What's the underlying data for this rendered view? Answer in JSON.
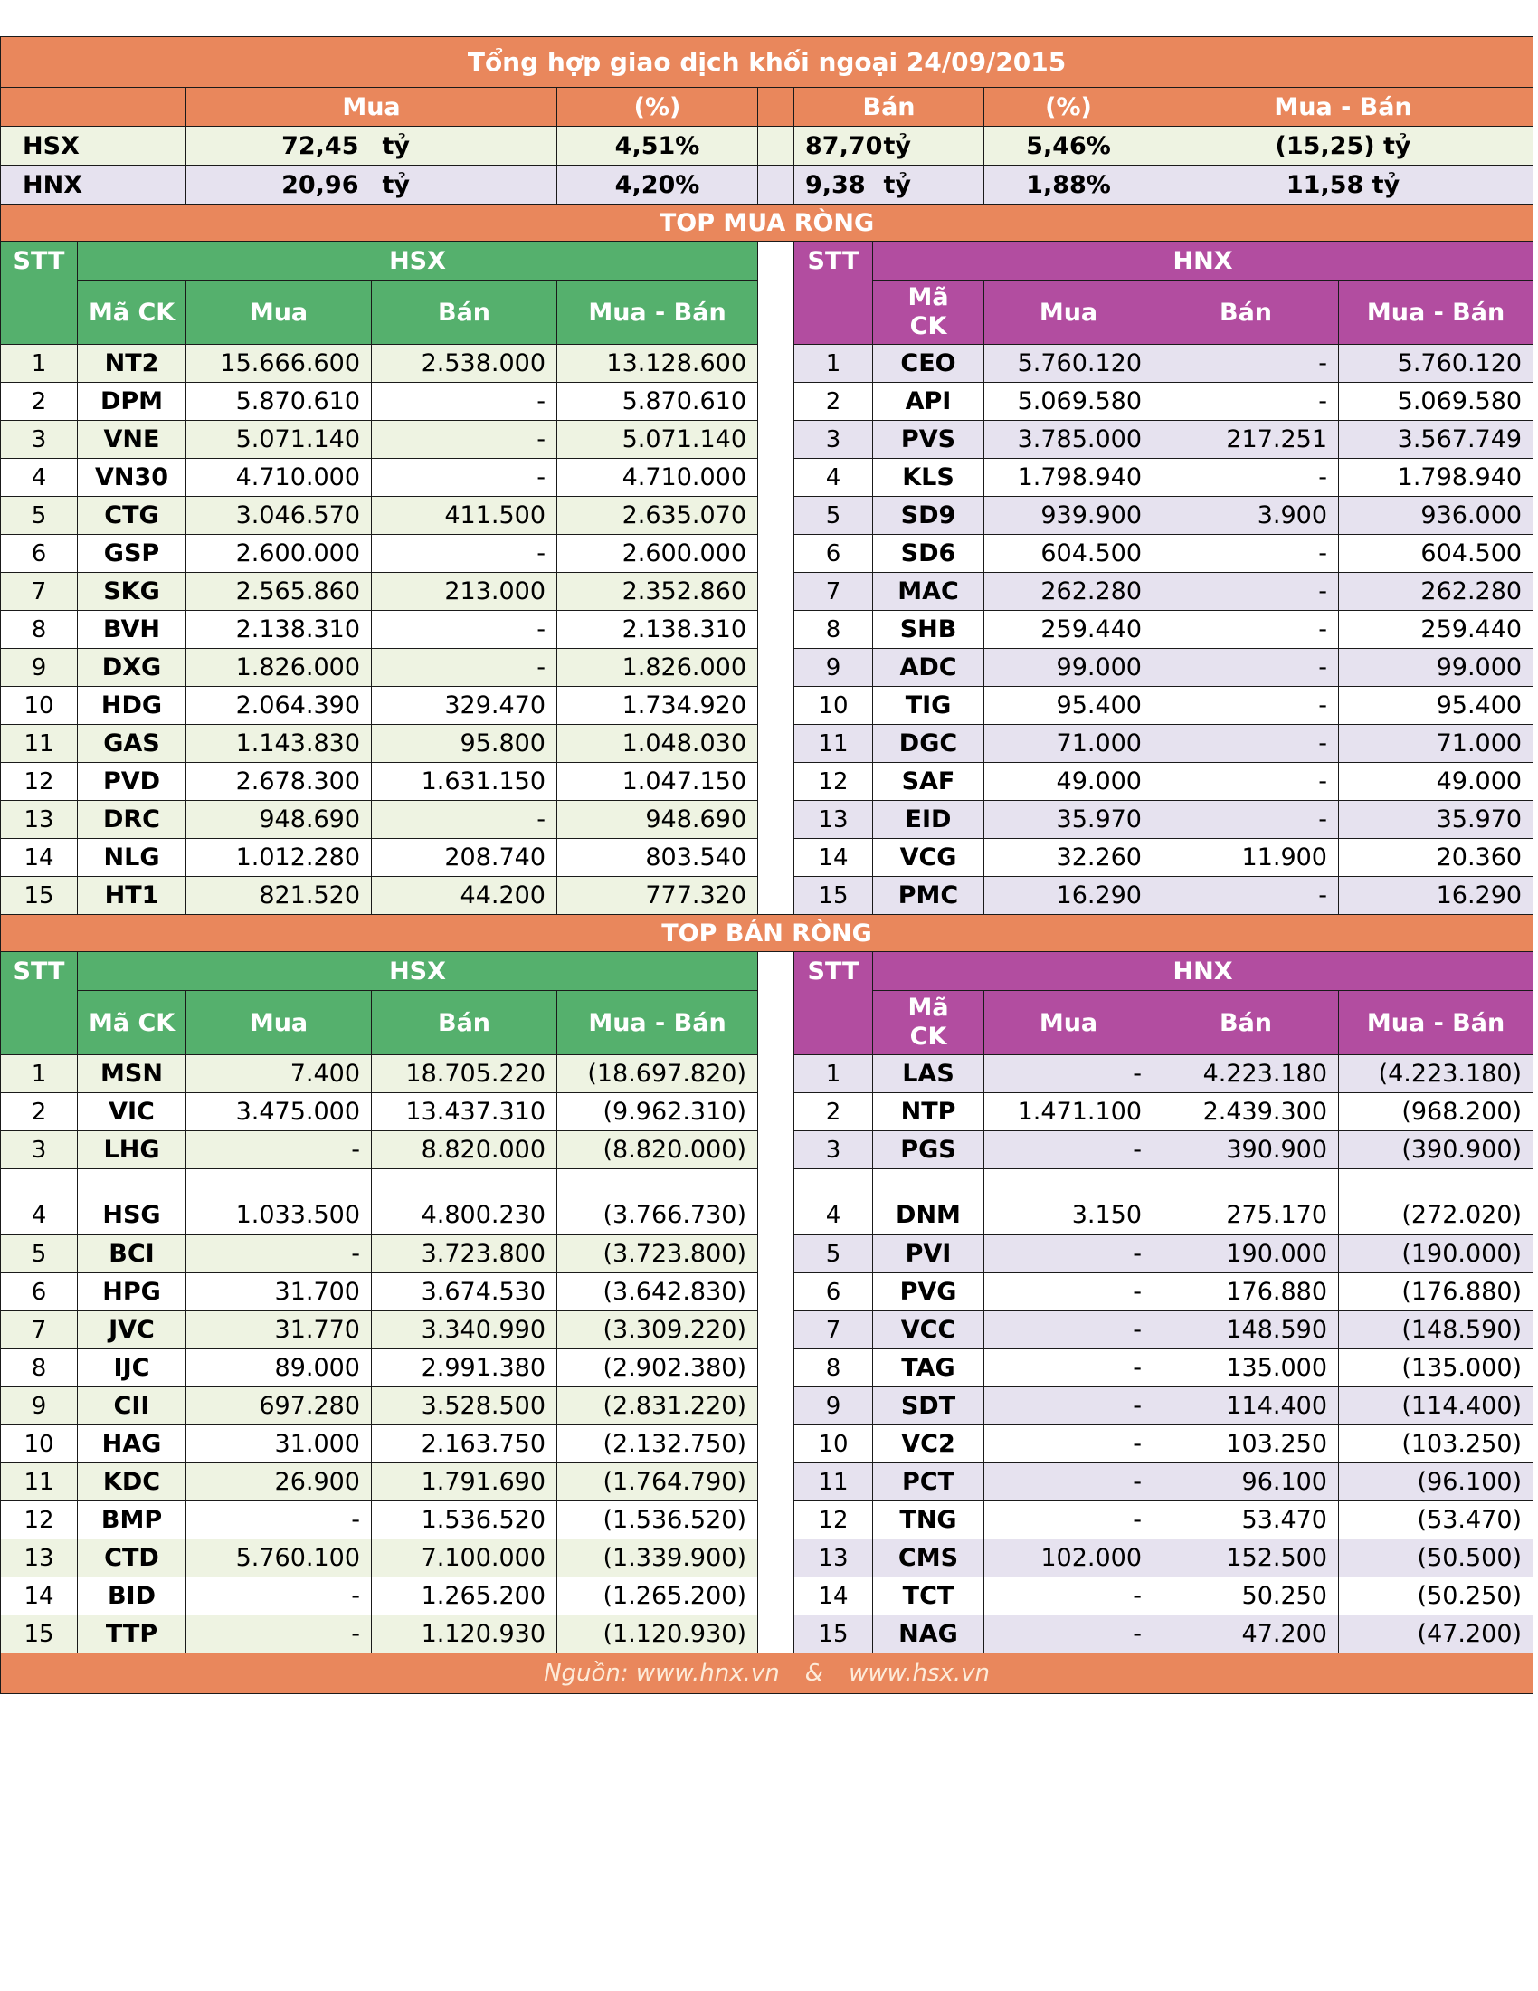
{
  "title": "Tổng hợp giao dịch khối ngoại 24/09/2015",
  "summary": {
    "headers": {
      "buy": "Mua",
      "buy_pct": "(%)",
      "sell": "Bán",
      "sell_pct": "(%)",
      "net": "Mua - Bán"
    },
    "unit": "tỷ",
    "rows": [
      {
        "exchange": "HSX",
        "buy": "72,45",
        "buy_pct": "4,51%",
        "sell": "87,70",
        "sell_pct": "5,46%",
        "net": "(15,25) tỷ"
      },
      {
        "exchange": "HNX",
        "buy": "20,96",
        "buy_pct": "4,20%",
        "sell": "9,38",
        "sell_pct": "1,88%",
        "net": "11,58 tỷ"
      }
    ]
  },
  "labels": {
    "stt": "STT",
    "hsx": "HSX",
    "hnx": "HNX",
    "code_hsx": "Mã CK",
    "code_hnx_1": "Mã",
    "code_hnx_2": "CK",
    "buy": "Mua",
    "sell": "Bán",
    "net": "Mua - Bán"
  },
  "top_buy": {
    "title": "TOP MUA RÒNG",
    "hsx": [
      [
        "1",
        "NT2",
        "15.666.600",
        "2.538.000",
        "13.128.600"
      ],
      [
        "2",
        "DPM",
        "5.870.610",
        "-",
        "5.870.610"
      ],
      [
        "3",
        "VNE",
        "5.071.140",
        "-",
        "5.071.140"
      ],
      [
        "4",
        "VN30",
        "4.710.000",
        "-",
        "4.710.000"
      ],
      [
        "5",
        "CTG",
        "3.046.570",
        "411.500",
        "2.635.070"
      ],
      [
        "6",
        "GSP",
        "2.600.000",
        "-",
        "2.600.000"
      ],
      [
        "7",
        "SKG",
        "2.565.860",
        "213.000",
        "2.352.860"
      ],
      [
        "8",
        "BVH",
        "2.138.310",
        "-",
        "2.138.310"
      ],
      [
        "9",
        "DXG",
        "1.826.000",
        "-",
        "1.826.000"
      ],
      [
        "10",
        "HDG",
        "2.064.390",
        "329.470",
        "1.734.920"
      ],
      [
        "11",
        "GAS",
        "1.143.830",
        "95.800",
        "1.048.030"
      ],
      [
        "12",
        "PVD",
        "2.678.300",
        "1.631.150",
        "1.047.150"
      ],
      [
        "13",
        "DRC",
        "948.690",
        "-",
        "948.690"
      ],
      [
        "14",
        "NLG",
        "1.012.280",
        "208.740",
        "803.540"
      ],
      [
        "15",
        "HT1",
        "821.520",
        "44.200",
        "777.320"
      ]
    ],
    "hnx": [
      [
        "1",
        "CEO",
        "5.760.120",
        "-",
        "5.760.120"
      ],
      [
        "2",
        "API",
        "5.069.580",
        "-",
        "5.069.580"
      ],
      [
        "3",
        "PVS",
        "3.785.000",
        "217.251",
        "3.567.749"
      ],
      [
        "4",
        "KLS",
        "1.798.940",
        "-",
        "1.798.940"
      ],
      [
        "5",
        "SD9",
        "939.900",
        "3.900",
        "936.000"
      ],
      [
        "6",
        "SD6",
        "604.500",
        "-",
        "604.500"
      ],
      [
        "7",
        "MAC",
        "262.280",
        "-",
        "262.280"
      ],
      [
        "8",
        "SHB",
        "259.440",
        "-",
        "259.440"
      ],
      [
        "9",
        "ADC",
        "99.000",
        "-",
        "99.000"
      ],
      [
        "10",
        "TIG",
        "95.400",
        "-",
        "95.400"
      ],
      [
        "11",
        "DGC",
        "71.000",
        "-",
        "71.000"
      ],
      [
        "12",
        "SAF",
        "49.000",
        "-",
        "49.000"
      ],
      [
        "13",
        "EID",
        "35.970",
        "-",
        "35.970"
      ],
      [
        "14",
        "VCG",
        "32.260",
        "11.900",
        "20.360"
      ],
      [
        "15",
        "PMC",
        "16.290",
        "-",
        "16.290"
      ]
    ]
  },
  "top_sell": {
    "title": "TOP BÁN RÒNG",
    "hsx": [
      [
        "1",
        "MSN",
        "7.400",
        "18.705.220",
        "(18.697.820)"
      ],
      [
        "2",
        "VIC",
        "3.475.000",
        "13.437.310",
        "(9.962.310)"
      ],
      [
        "3",
        "LHG",
        "-",
        "8.820.000",
        "(8.820.000)"
      ],
      [
        "4",
        "HSG",
        "1.033.500",
        "4.800.230",
        "(3.766.730)"
      ],
      [
        "5",
        "BCI",
        "-",
        "3.723.800",
        "(3.723.800)"
      ],
      [
        "6",
        "HPG",
        "31.700",
        "3.674.530",
        "(3.642.830)"
      ],
      [
        "7",
        "JVC",
        "31.770",
        "3.340.990",
        "(3.309.220)"
      ],
      [
        "8",
        "IJC",
        "89.000",
        "2.991.380",
        "(2.902.380)"
      ],
      [
        "9",
        "CII",
        "697.280",
        "3.528.500",
        "(2.831.220)"
      ],
      [
        "10",
        "HAG",
        "31.000",
        "2.163.750",
        "(2.132.750)"
      ],
      [
        "11",
        "KDC",
        "26.900",
        "1.791.690",
        "(1.764.790)"
      ],
      [
        "12",
        "BMP",
        "-",
        "1.536.520",
        "(1.536.520)"
      ],
      [
        "13",
        "CTD",
        "5.760.100",
        "7.100.000",
        "(1.339.900)"
      ],
      [
        "14",
        "BID",
        "-",
        "1.265.200",
        "(1.265.200)"
      ],
      [
        "15",
        "TTP",
        "-",
        "1.120.930",
        "(1.120.930)"
      ]
    ],
    "hnx": [
      [
        "1",
        "LAS",
        "-",
        "4.223.180",
        "(4.223.180)"
      ],
      [
        "2",
        "NTP",
        "1.471.100",
        "2.439.300",
        "(968.200)"
      ],
      [
        "3",
        "PGS",
        "-",
        "390.900",
        "(390.900)"
      ],
      [
        "4",
        "DNM",
        "3.150",
        "275.170",
        "(272.020)"
      ],
      [
        "5",
        "PVI",
        "-",
        "190.000",
        "(190.000)"
      ],
      [
        "6",
        "PVG",
        "-",
        "176.880",
        "(176.880)"
      ],
      [
        "7",
        "VCC",
        "-",
        "148.590",
        "(148.590)"
      ],
      [
        "8",
        "TAG",
        "-",
        "135.000",
        "(135.000)"
      ],
      [
        "9",
        "SDT",
        "-",
        "114.400",
        "(114.400)"
      ],
      [
        "10",
        "VC2",
        "-",
        "103.250",
        "(103.250)"
      ],
      [
        "11",
        "PCT",
        "-",
        "96.100",
        "(96.100)"
      ],
      [
        "12",
        "TNG",
        "-",
        "53.470",
        "(53.470)"
      ],
      [
        "13",
        "CMS",
        "102.000",
        "152.500",
        "(50.500)"
      ],
      [
        "14",
        "TCT",
        "-",
        "50.250",
        "(50.250)"
      ],
      [
        "15",
        "NAG",
        "-",
        "47.200",
        "(47.200)"
      ]
    ]
  },
  "footer": {
    "src1": "Nguồn: www.hnx.vn",
    "amp": "&",
    "src2": "www.hsx.vn"
  }
}
